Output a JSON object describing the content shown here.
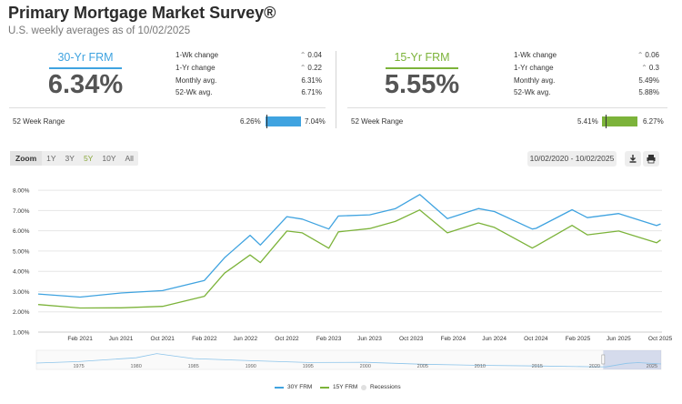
{
  "header": {
    "title": "Primary Mortgage Market Survey®",
    "subtitle": "U.S. weekly averages as of 10/02/2025"
  },
  "panels": [
    {
      "label": "30-Yr FRM",
      "rate": "6.34%",
      "color": "#3fa3e0",
      "stats": [
        {
          "label": "1-Wk change",
          "value": "0.04",
          "arrow": "up"
        },
        {
          "label": "1-Yr change",
          "value": "0.22",
          "arrow": "up"
        },
        {
          "label": "Monthly avg.",
          "value": "6.31%"
        },
        {
          "label": "52-Wk avg.",
          "value": "6.71%"
        }
      ],
      "range_label": "52 Week Range",
      "range_low": "6.26%",
      "range_high": "7.04%"
    },
    {
      "label": "15-Yr FRM",
      "rate": "5.55%",
      "color": "#7cb33a",
      "stats": [
        {
          "label": "1-Wk change",
          "value": "0.06",
          "arrow": "up"
        },
        {
          "label": "1-Yr change",
          "value": "0.3",
          "arrow": "up"
        },
        {
          "label": "Monthly avg.",
          "value": "5.49%"
        },
        {
          "label": "52-Wk avg.",
          "value": "5.88%"
        }
      ],
      "range_label": "52 Week Range",
      "range_low": "5.41%",
      "range_high": "6.27%"
    }
  ],
  "zoom": {
    "label": "Zoom",
    "options": [
      "1Y",
      "3Y",
      "5Y",
      "10Y",
      "All"
    ],
    "active": "5Y"
  },
  "date_range": "10/02/2020  -  10/02/2025",
  "toolbar": {
    "download_icon": "download-icon",
    "print_icon": "printer-icon"
  },
  "chart_data": {
    "type": "line",
    "y_ticks": [
      "8.00%",
      "7.00%",
      "6.00%",
      "5.00%",
      "4.00%",
      "3.00%",
      "2.00%",
      "1.00%"
    ],
    "ylim": [
      1,
      8.5
    ],
    "x_ticks": [
      "Feb 2021",
      "Jun 2021",
      "Oct 2021",
      "Feb 2022",
      "Jun 2022",
      "Oct 2022",
      "Feb 2023",
      "Jun 2023",
      "Oct 2023",
      "Feb 2024",
      "Jun 2024",
      "Oct 2024",
      "Feb 2025",
      "Jun 2025",
      "Oct 2025"
    ],
    "x_dates": [
      "2020-10-01",
      "2021-02-01",
      "2021-06-01",
      "2021-10-01",
      "2022-02-01",
      "2022-04-01",
      "2022-06-15",
      "2022-07-15",
      "2022-10-01",
      "2022-11-15",
      "2023-02-01",
      "2023-03-01",
      "2023-06-01",
      "2023-08-15",
      "2023-10-26",
      "2024-01-15",
      "2024-04-15",
      "2024-06-01",
      "2024-09-20",
      "2024-10-01",
      "2025-01-15",
      "2025-03-01",
      "2025-06-01",
      "2025-09-20",
      "2025-10-02"
    ],
    "series": [
      {
        "name": "30Y FRM",
        "color": "#3fa3e0",
        "values": [
          2.88,
          2.73,
          2.93,
          3.05,
          3.55,
          4.67,
          5.78,
          5.3,
          6.7,
          6.58,
          6.09,
          6.73,
          6.79,
          7.09,
          7.79,
          6.6,
          7.1,
          6.95,
          6.09,
          6.12,
          7.04,
          6.65,
          6.85,
          6.26,
          6.34
        ]
      },
      {
        "name": "15Y FRM",
        "color": "#7cb33a",
        "values": [
          2.36,
          2.19,
          2.2,
          2.27,
          2.77,
          3.91,
          4.81,
          4.43,
          5.99,
          5.9,
          5.14,
          5.95,
          6.11,
          6.46,
          7.03,
          5.9,
          6.39,
          6.17,
          5.15,
          5.25,
          6.27,
          5.8,
          5.99,
          5.41,
          5.55
        ]
      }
    ],
    "navigator_ticks": [
      "1975",
      "1980",
      "1985",
      "1990",
      "1995",
      "2000",
      "2005",
      "2010",
      "2015",
      "2020",
      "2025"
    ],
    "legend": [
      "30Y FRM",
      "15Y FRM",
      "Recessions"
    ],
    "recession_color": "#e0e0e0"
  }
}
